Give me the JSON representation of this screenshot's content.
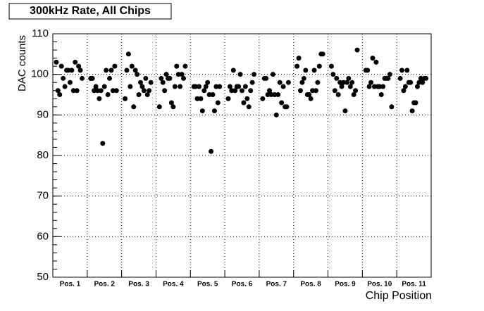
{
  "chart_data": {
    "type": "scatter",
    "title": "300kHz Rate, All Chips",
    "ylabel": "DAC counts",
    "xlabel": "Chip Position",
    "categories": [
      "Pos. 1",
      "Pos. 2",
      "Pos. 3",
      "Pos. 4",
      "Pos. 5",
      "Pos. 6",
      "Pos. 7",
      "Pos. 8",
      "Pos. 9",
      "Pos. 10",
      "Pos. 11"
    ],
    "xlim": [
      0,
      11
    ],
    "ylim": [
      50,
      110
    ],
    "yticks": [
      50,
      60,
      70,
      80,
      90,
      100,
      110
    ],
    "grid": true,
    "color": "#000000",
    "x": [
      0.1,
      0.15,
      0.2,
      0.25,
      0.3,
      0.35,
      0.4,
      0.45,
      0.5,
      0.55,
      0.6,
      0.65,
      0.7,
      0.75,
      0.8,
      0.85,
      1.1,
      1.15,
      1.2,
      1.25,
      1.3,
      1.35,
      1.4,
      1.45,
      1.5,
      1.55,
      1.6,
      1.65,
      1.7,
      1.75,
      1.8,
      1.85,
      2.1,
      2.15,
      2.2,
      2.25,
      2.3,
      2.35,
      2.4,
      2.45,
      2.5,
      2.55,
      2.6,
      2.65,
      2.7,
      2.75,
      2.8,
      2.85,
      3.1,
      3.15,
      3.2,
      3.25,
      3.3,
      3.35,
      3.4,
      3.45,
      3.5,
      3.55,
      3.6,
      3.65,
      3.7,
      3.75,
      3.8,
      3.85,
      4.1,
      4.15,
      4.2,
      4.25,
      4.3,
      4.35,
      4.4,
      4.45,
      4.5,
      4.55,
      4.6,
      4.65,
      4.7,
      4.75,
      4.8,
      4.85,
      5.1,
      5.15,
      5.2,
      5.25,
      5.3,
      5.35,
      5.4,
      5.45,
      5.5,
      5.55,
      5.6,
      5.65,
      5.7,
      5.75,
      5.8,
      5.85,
      6.1,
      6.15,
      6.2,
      6.25,
      6.3,
      6.35,
      6.4,
      6.45,
      6.5,
      6.55,
      6.6,
      6.65,
      6.7,
      6.75,
      6.8,
      6.85,
      7.1,
      7.15,
      7.2,
      7.25,
      7.3,
      7.35,
      7.4,
      7.45,
      7.5,
      7.55,
      7.6,
      7.65,
      7.7,
      7.75,
      7.8,
      7.85,
      8.1,
      8.15,
      8.2,
      8.25,
      8.3,
      8.35,
      8.4,
      8.45,
      8.5,
      8.55,
      8.6,
      8.65,
      8.7,
      8.75,
      8.8,
      8.85,
      9.1,
      9.15,
      9.2,
      9.25,
      9.3,
      9.35,
      9.4,
      9.45,
      9.5,
      9.55,
      9.6,
      9.65,
      9.7,
      9.75,
      9.8,
      9.85,
      10.1,
      10.15,
      10.2,
      10.25,
      10.3,
      10.35,
      10.4,
      10.45,
      10.5,
      10.55,
      10.6,
      10.65,
      10.7,
      10.75,
      10.8,
      10.85
    ],
    "values": [
      103,
      96,
      95,
      102,
      99,
      97,
      101,
      101,
      98,
      101,
      96,
      103,
      96,
      102,
      101,
      99,
      99,
      99,
      96,
      97,
      96,
      94,
      96,
      83,
      97,
      101,
      95,
      99,
      101,
      96,
      102,
      96,
      94,
      101,
      105,
      97,
      102,
      92,
      101,
      100,
      95,
      98,
      97,
      96,
      99,
      95,
      96,
      98,
      92,
      99,
      98,
      96,
      100,
      99,
      99,
      93,
      92,
      97,
      102,
      100,
      97,
      100,
      99,
      102,
      97,
      97,
      94,
      97,
      94,
      91,
      96,
      97,
      98,
      95,
      81,
      95,
      91,
      97,
      93,
      97,
      94,
      97,
      96,
      101,
      96,
      97,
      97,
      100,
      96,
      93,
      97,
      94,
      92,
      96,
      98,
      100,
      94,
      99,
      99,
      95,
      96,
      95,
      100,
      95,
      90,
      95,
      98,
      93,
      97,
      92,
      92,
      98,
      102,
      104,
      96,
      98,
      99,
      101,
      95,
      95,
      94,
      96,
      101,
      96,
      98,
      102,
      105,
      105,
      102,
      100,
      96,
      99,
      95,
      98,
      97,
      98,
      91,
      98,
      99,
      97,
      98,
      95,
      96,
      106,
      101,
      101,
      97,
      98,
      104,
      97,
      103,
      97,
      97,
      95,
      97,
      99,
      99,
      99,
      100,
      92,
      99,
      101,
      96,
      97,
      101,
      98,
      98,
      91,
      93,
      93,
      97,
      98,
      99,
      98,
      99,
      99
    ]
  }
}
